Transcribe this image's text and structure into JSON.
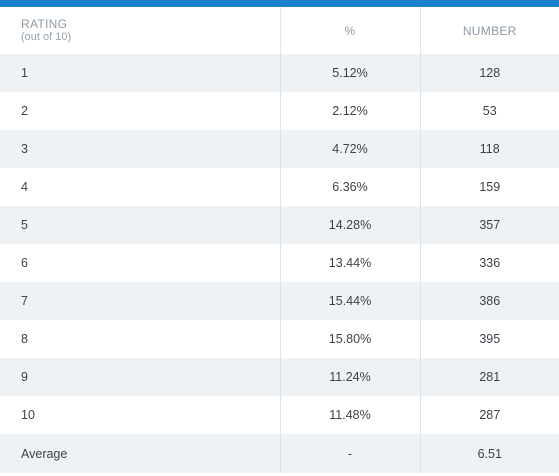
{
  "header": {
    "rating_label": "RATING",
    "rating_sublabel": "(out of 10)",
    "percent_label": "%",
    "number_label": "NUMBER"
  },
  "rows": [
    {
      "rating": "1",
      "percent": "5.12%",
      "number": "128"
    },
    {
      "rating": "2",
      "percent": "2.12%",
      "number": "53"
    },
    {
      "rating": "3",
      "percent": "4.72%",
      "number": "118"
    },
    {
      "rating": "4",
      "percent": "6.36%",
      "number": "159"
    },
    {
      "rating": "5",
      "percent": "14.28%",
      "number": "357"
    },
    {
      "rating": "6",
      "percent": "13.44%",
      "number": "336"
    },
    {
      "rating": "7",
      "percent": "15.44%",
      "number": "386"
    },
    {
      "rating": "8",
      "percent": "15.80%",
      "number": "395"
    },
    {
      "rating": "9",
      "percent": "11.24%",
      "number": "281"
    },
    {
      "rating": "10",
      "percent": "11.48%",
      "number": "287"
    }
  ],
  "average": {
    "label": "Average",
    "percent": "-",
    "number": "6.51"
  },
  "colors": {
    "accent_bar": "#1a82c8",
    "row_stripe": "#eef2f5",
    "header_text": "#8d99a6",
    "body_text": "#3e4248"
  }
}
